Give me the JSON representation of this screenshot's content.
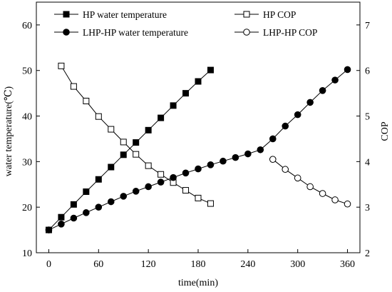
{
  "chart_data": {
    "type": "line",
    "title": "",
    "xlabel": "time(min)",
    "ylabel": "water temperature(℃)",
    "y2label": "COP",
    "xlim": [
      -15,
      375
    ],
    "ylim": [
      10,
      65
    ],
    "y2lim": [
      2,
      7.5
    ],
    "xticks": [
      0,
      60,
      120,
      180,
      240,
      300,
      360
    ],
    "yticks": [
      10,
      20,
      30,
      40,
      50,
      60
    ],
    "y2ticks": [
      2,
      3,
      4,
      5,
      6,
      7
    ],
    "legend_placement": "top",
    "series": [
      {
        "name": "HP water temperature",
        "axis": "left",
        "marker": "filled-square",
        "x": [
          0,
          15,
          30,
          45,
          60,
          75,
          90,
          105,
          120,
          135,
          150,
          165,
          180,
          195
        ],
        "y": [
          15,
          17.8,
          20.6,
          23.4,
          26.1,
          28.8,
          31.5,
          34.2,
          36.9,
          39.6,
          42.3,
          45.0,
          47.6,
          50.1
        ]
      },
      {
        "name": "HP COP",
        "axis": "right",
        "marker": "open-square",
        "x": [
          15,
          30,
          45,
          60,
          75,
          90,
          105,
          120,
          135,
          150,
          165,
          180,
          195
        ],
        "y": [
          6.1,
          5.65,
          5.33,
          4.99,
          4.71,
          4.43,
          4.16,
          3.91,
          3.72,
          3.54,
          3.37,
          3.2,
          3.08
        ]
      },
      {
        "name": "LHP-HP water temperature",
        "axis": "left",
        "marker": "filled-circle",
        "x": [
          0,
          15,
          30,
          45,
          60,
          75,
          90,
          105,
          120,
          135,
          150,
          165,
          180,
          195,
          210,
          225,
          240,
          255,
          270,
          285,
          300,
          315,
          330,
          345,
          360
        ],
        "y": [
          15,
          16.3,
          17.6,
          18.8,
          20.0,
          21.2,
          22.4,
          23.5,
          24.5,
          25.5,
          26.5,
          27.5,
          28.4,
          29.3,
          30.1,
          30.9,
          31.7,
          32.6,
          35.0,
          37.8,
          40.3,
          43.0,
          45.6,
          47.9,
          50.2
        ]
      },
      {
        "name": "LHP-HP COP",
        "axis": "right",
        "marker": "open-circle",
        "x": [
          270,
          285,
          300,
          315,
          330,
          345,
          360
        ],
        "y": [
          4.05,
          3.83,
          3.64,
          3.45,
          3.3,
          3.16,
          3.07
        ]
      }
    ]
  }
}
